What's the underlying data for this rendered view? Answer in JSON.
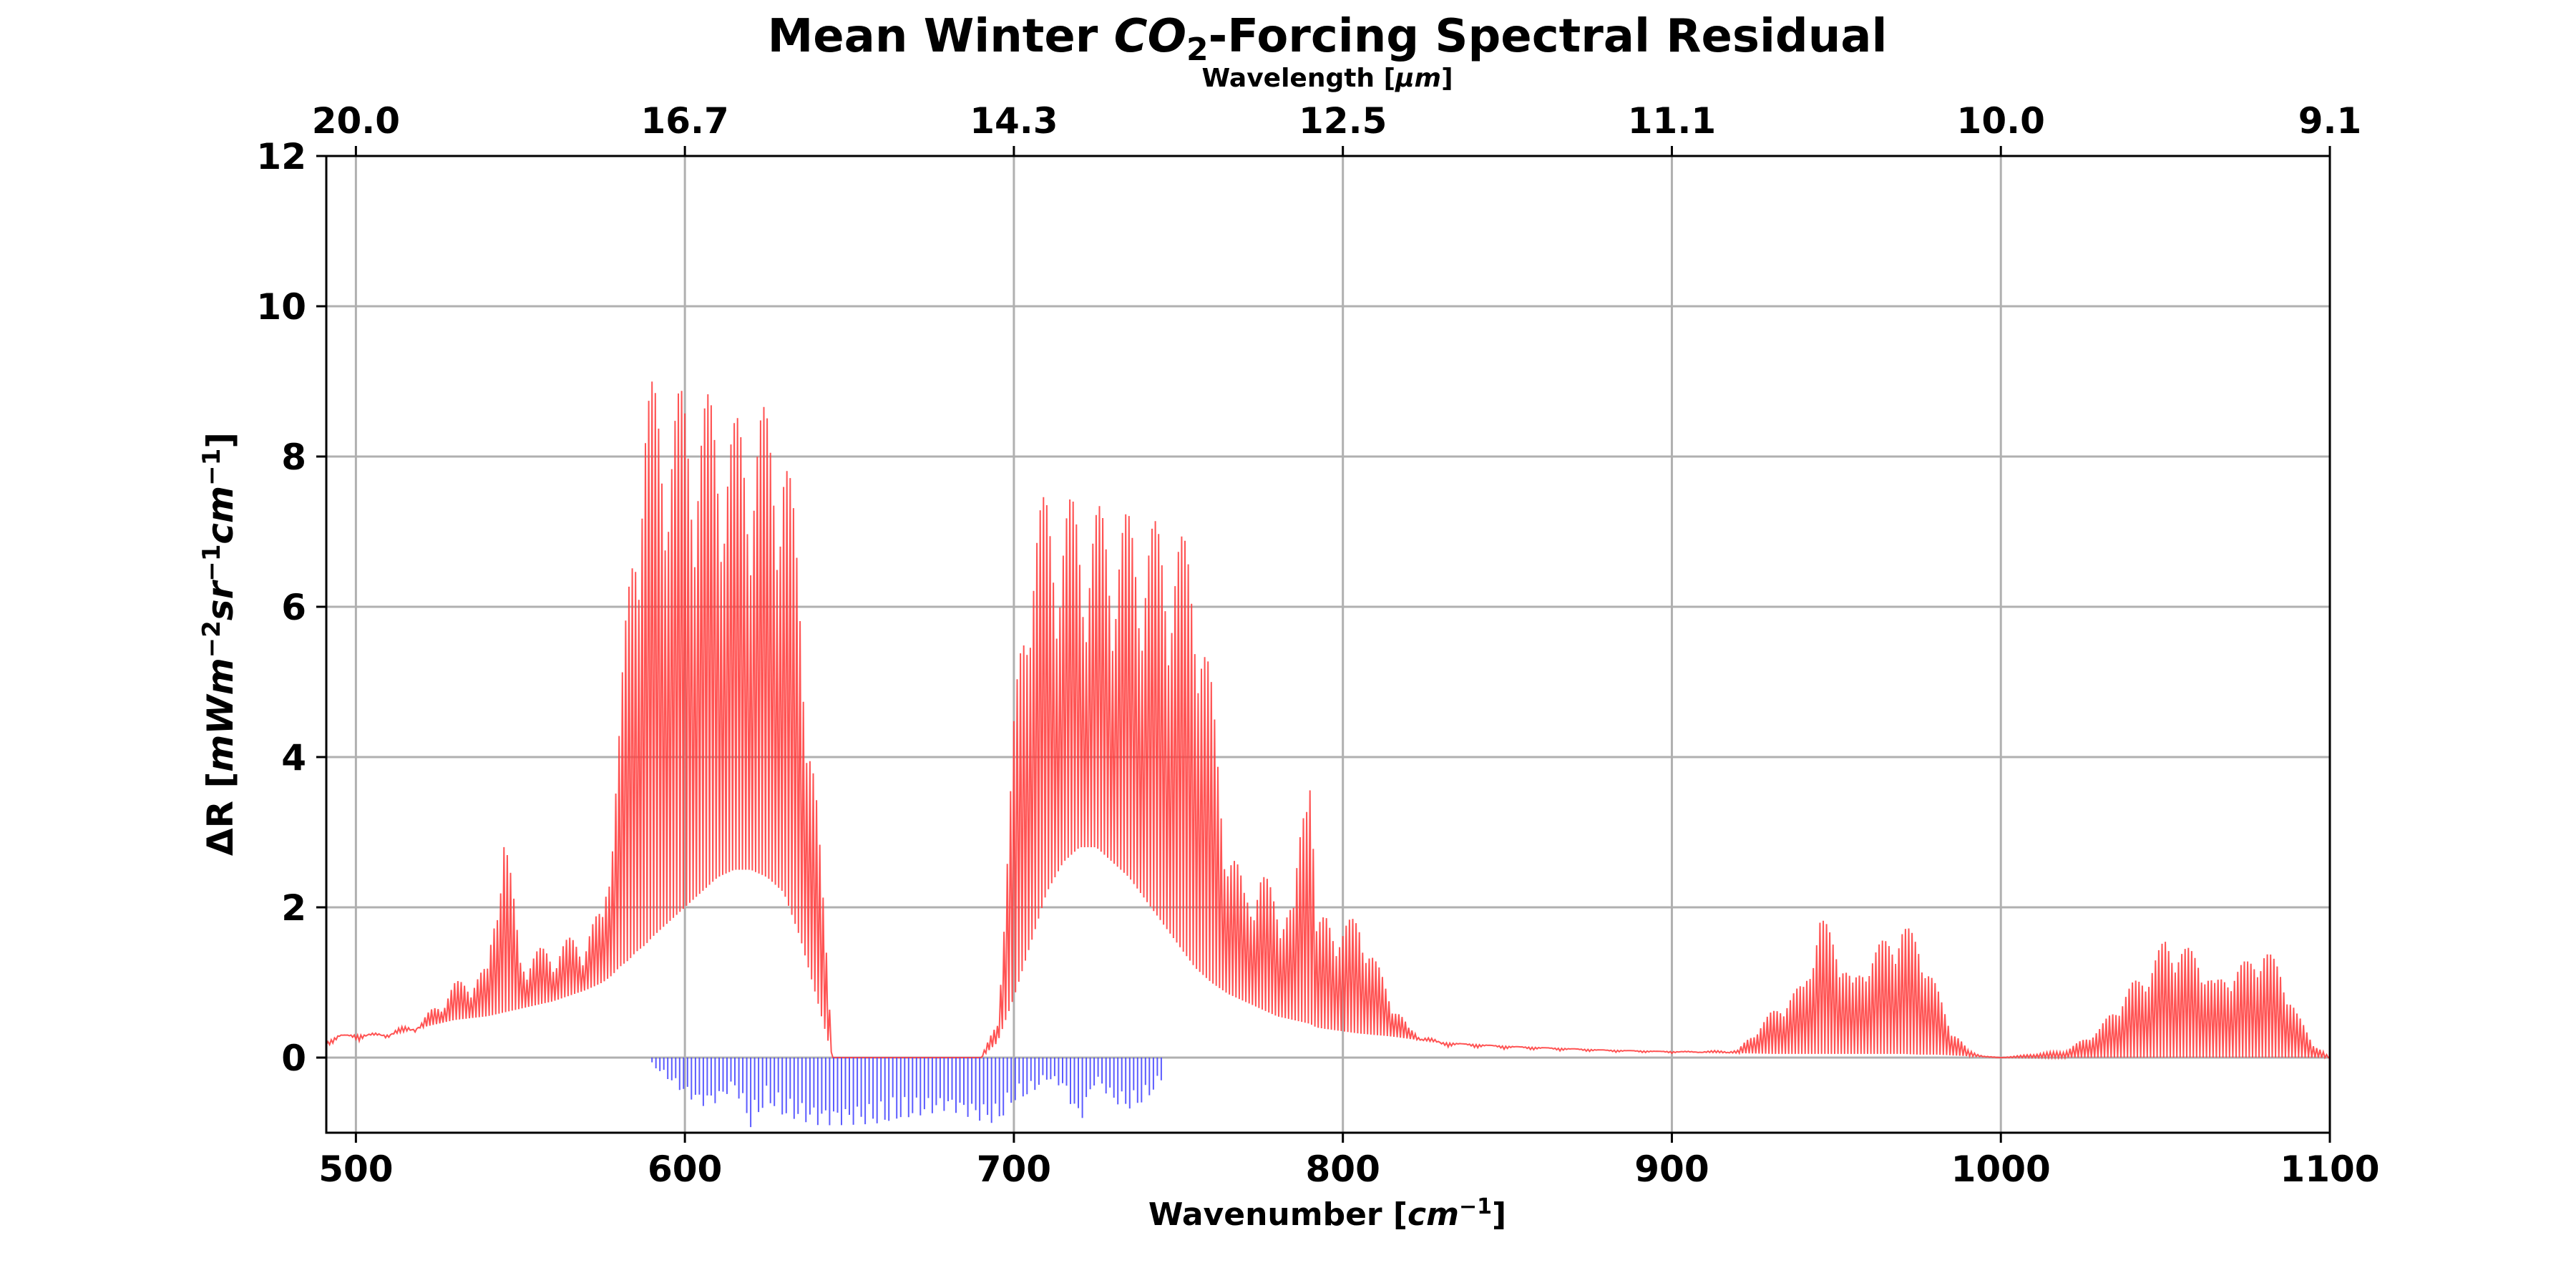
{
  "chart_data": {
    "type": "line",
    "title_prefix": "Mean Winter ",
    "title_co": "CO",
    "title_sub": "2",
    "title_suffix": "-Forcing Spectral Residual",
    "top_axis_label_prefix": "Wavelength [",
    "top_axis_label_unit": "μm",
    "top_axis_label_suffix": "]",
    "xlabel_prefix": "Wavenumber [",
    "xlabel_unit": "cm",
    "xlabel_exp": "−1",
    "xlabel_suffix": "]",
    "ylabel_prefix": "ΔR [",
    "ylabel_unit": "mWm",
    "ylabel_exp1": "−2",
    "ylabel_unit2": "sr",
    "ylabel_exp2": "−1",
    "ylabel_unit3": "cm",
    "ylabel_exp3": "−1",
    "ylabel_suffix": "]",
    "xlim": [
      491,
      1100
    ],
    "ylim": [
      -1,
      12
    ],
    "grid": true,
    "x_ticks": [
      500,
      600,
      700,
      800,
      900,
      1000,
      1100
    ],
    "x_tick_labels": [
      "500",
      "600",
      "700",
      "800",
      "900",
      "1000",
      "1100"
    ],
    "y_ticks": [
      0,
      2,
      4,
      6,
      8,
      10,
      12
    ],
    "y_tick_labels": [
      "0",
      "2",
      "4",
      "6",
      "8",
      "10",
      "12"
    ],
    "top_ticks": [
      500,
      600,
      700,
      800,
      900,
      1000,
      1100
    ],
    "top_tick_labels": [
      "20.0",
      "16.7",
      "14.3",
      "12.5",
      "11.1",
      "10.0",
      "9.1"
    ],
    "colors": {
      "positive": "#ff4040",
      "negative": "#4040ff",
      "grid": "#b0b0b0"
    },
    "series": [
      {
        "color": "#ff4040",
        "x": [
          491,
          495,
          500,
          510,
          520,
          530,
          540,
          545,
          550,
          560,
          570,
          575,
          578,
          580,
          583,
          585,
          588,
          590,
          595,
          600,
          605,
          610,
          615,
          620,
          625,
          630,
          635,
          640,
          643,
          645,
          650,
          660,
          670,
          680,
          690,
          695,
          700,
          705,
          710,
          715,
          720,
          725,
          730,
          735,
          740,
          745,
          750,
          755,
          760,
          765,
          770,
          775,
          780,
          785,
          790,
          792,
          795,
          800,
          805,
          810,
          815,
          820,
          830,
          850,
          880,
          900,
          920,
          930,
          940,
          945,
          950,
          955,
          960,
          965,
          970,
          975,
          980,
          985,
          990,
          995,
          1000,
          1020,
          1030,
          1040,
          1045,
          1050,
          1055,
          1060,
          1065,
          1070,
          1075,
          1080,
          1085,
          1090,
          1095,
          1100
        ],
        "y_envelope": [
          0.2,
          0.3,
          0.3,
          0.35,
          0.5,
          1.0,
          1.2,
          3.2,
          1.4,
          1.5,
          1.7,
          2.0,
          3.5,
          4.5,
          6.5,
          8.0,
          8.9,
          9.0,
          8.9,
          8.9,
          8.85,
          8.8,
          8.5,
          8.7,
          8.65,
          8.6,
          6.5,
          3.5,
          1.5,
          0.0,
          0.0,
          0.0,
          0.0,
          0.0,
          0.0,
          0.5,
          4.5,
          7.3,
          7.5,
          7.5,
          7.4,
          7.35,
          7.3,
          7.25,
          7.2,
          7.1,
          7.0,
          6.8,
          5.0,
          3.0,
          2.3,
          2.5,
          2.2,
          2.0,
          4.7,
          1.8,
          1.9,
          1.8,
          1.9,
          1.3,
          0.8,
          0.4,
          0.2,
          0.15,
          0.1,
          0.08,
          0.1,
          0.6,
          1.0,
          1.9,
          1.6,
          1.0,
          1.4,
          1.6,
          1.8,
          1.6,
          1.0,
          0.4,
          0.1,
          0.02,
          0.0,
          0.1,
          0.4,
          1.0,
          1.2,
          1.6,
          1.5,
          1.4,
          1.0,
          1.2,
          1.3,
          1.5,
          1.2,
          0.6,
          0.2,
          0.0
        ],
        "baseline": [
          0.2,
          0.3,
          0.3,
          0.3,
          0.4,
          0.5,
          0.55,
          0.6,
          0.65,
          0.75,
          0.9,
          1.0,
          1.1,
          1.2,
          1.3,
          1.4,
          1.5,
          1.6,
          1.8,
          2.0,
          2.2,
          2.4,
          2.5,
          2.5,
          2.4,
          2.2,
          1.6,
          0.8,
          0.3,
          0.0,
          0.0,
          0.0,
          0.0,
          0.0,
          0.0,
          0.2,
          0.8,
          1.5,
          2.2,
          2.6,
          2.8,
          2.8,
          2.6,
          2.4,
          2.1,
          1.8,
          1.5,
          1.2,
          1.0,
          0.85,
          0.75,
          0.65,
          0.55,
          0.5,
          0.45,
          0.4,
          0.38,
          0.35,
          0.32,
          0.3,
          0.28,
          0.25,
          0.2,
          0.15,
          0.1,
          0.08,
          0.06,
          0.05,
          0.05,
          0.05,
          0.05,
          0.05,
          0.05,
          0.05,
          0.05,
          0.04,
          0.04,
          0.03,
          0.02,
          0.01,
          0.0,
          0.0,
          0.0,
          0.0,
          0.0,
          0.0,
          0.0,
          0.0,
          0.0,
          0.0,
          0.0,
          0.0,
          0.0,
          0.0,
          0.0,
          0.0
        ]
      },
      {
        "color": "#4040ff",
        "x": [
          590,
          595,
          600,
          605,
          610,
          615,
          620,
          625,
          630,
          640,
          650,
          660,
          665,
          670,
          680,
          690,
          695,
          700,
          705,
          710,
          715,
          720,
          725,
          730,
          735,
          740,
          745
        ],
        "y_envelope": [
          -0.1,
          -0.3,
          -0.5,
          -0.65,
          -0.6,
          -0.4,
          -0.95,
          -0.6,
          -0.8,
          -0.9,
          -0.9,
          -0.9,
          -0.85,
          -0.8,
          -0.7,
          -0.85,
          -0.9,
          -0.6,
          -0.5,
          -0.3,
          -0.4,
          -0.9,
          -0.3,
          -0.6,
          -0.7,
          -0.6,
          -0.3
        ]
      }
    ]
  }
}
